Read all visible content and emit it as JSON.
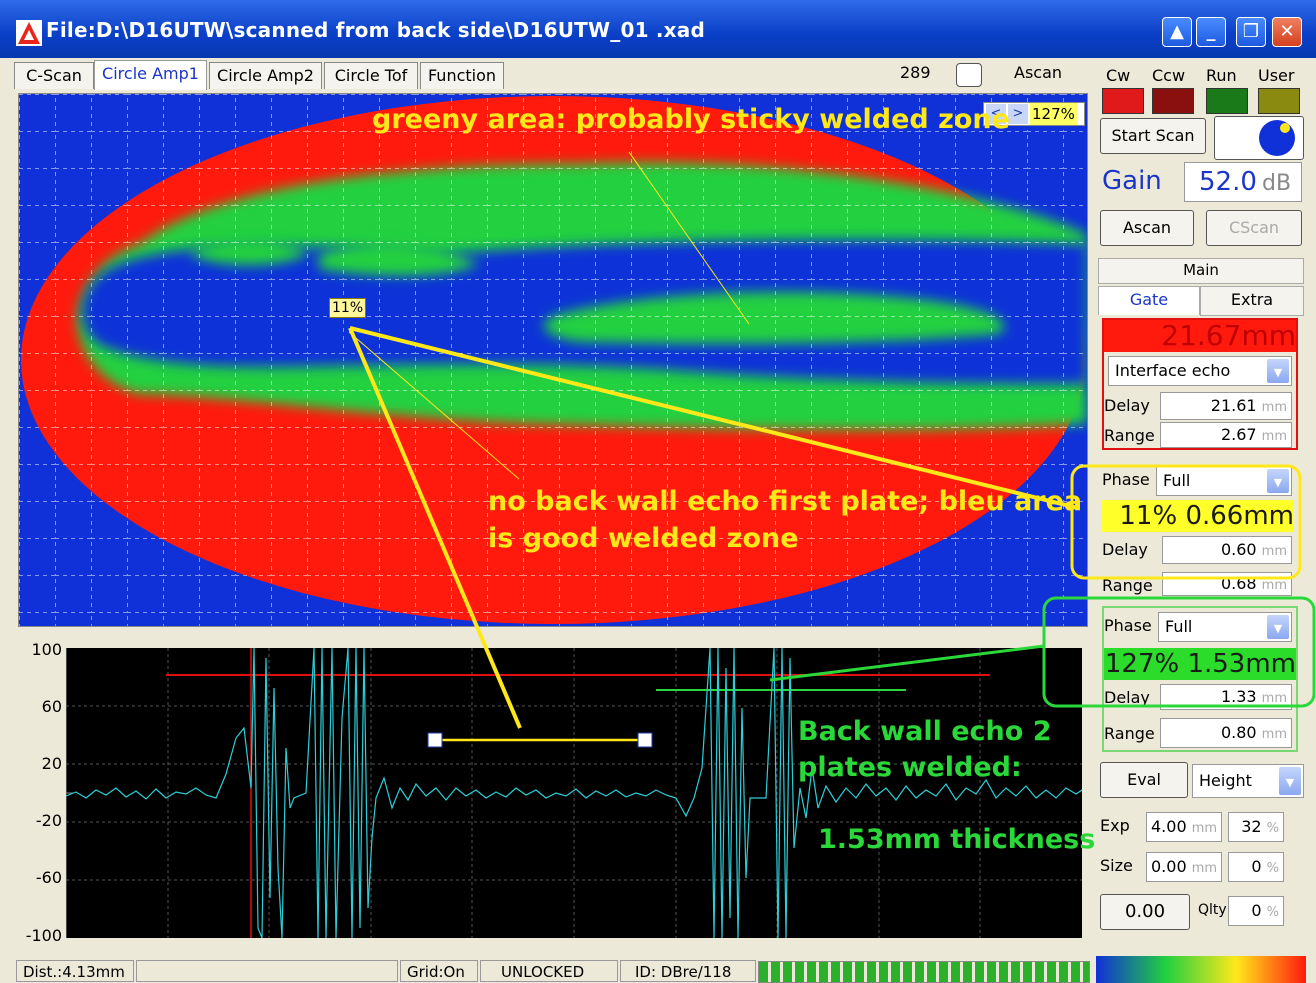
{
  "window": {
    "title": "File:D:\\D16UTW\\scanned from back side\\D16UTW_01  .xad"
  },
  "tabs": [
    {
      "label": "C-Scan"
    },
    {
      "label": "Circle Amp1"
    },
    {
      "label": "Circle Amp2"
    },
    {
      "label": "Circle Tof"
    },
    {
      "label": "Function"
    }
  ],
  "toolbar": {
    "counter": "289",
    "ascan_label": "Ascan",
    "zoom": "127%"
  },
  "cscan": {
    "marker_label": "11%"
  },
  "ascan": {
    "y_ticks": [
      "100",
      "60",
      "20",
      "-20",
      "-60",
      "-100"
    ]
  },
  "annotations": {
    "greeny": "greeny area: probably sticky welded zone",
    "noback_line1": "no back wall echo first plate; bleu area",
    "noback_line2": "is good welded zone",
    "backwall_line1": "Back wall echo 2",
    "backwall_line2": "plates welded:",
    "thickness": "1.53mm thickness"
  },
  "status": {
    "dist": "Dist.:4.13mm",
    "grid": "Grid:On",
    "lock": "UNLOCKED",
    "id": "ID: DBre/118"
  },
  "panel": {
    "dirs": [
      "Cw",
      "Ccw",
      "Run",
      "User"
    ],
    "start_scan": "Start Scan",
    "gain_label": "Gain",
    "gain_value": "52.0",
    "gain_unit": "dB",
    "ascan_btn": "Ascan",
    "cscan_btn": "CScan",
    "main_tab": "Main",
    "gate_tab": "Gate",
    "extra_tab": "Extra",
    "gate1": {
      "header": "21.67mm",
      "mode": "Interface echo",
      "delay_label": "Delay",
      "delay": "21.61",
      "range_label": "Range",
      "range": "2.67",
      "unit": "mm"
    },
    "gate2": {
      "phase_label": "Phase",
      "phase": "Full",
      "header": "11% 0.66mm",
      "delay_label": "Delay",
      "delay": "0.60",
      "range_label": "Range",
      "range": "0.68",
      "unit": "mm"
    },
    "gate3": {
      "phase_label": "Phase",
      "phase": "Full",
      "header": "127% 1.53mm",
      "delay_label": "Delay",
      "delay": "1.33",
      "range_label": "Range",
      "range": "0.80",
      "unit": "mm"
    },
    "eval_btn": "Eval",
    "eval_mode": "Height",
    "exp_label": "Exp",
    "exp_value": "4.00",
    "exp_unit": "mm",
    "exp_pct": "32",
    "size_label": "Size",
    "size_value": "0.00",
    "size_unit": "mm",
    "size_pct": "0",
    "pct_unit": "%",
    "result": "0.00",
    "qlty_label": "Qlty",
    "qlty_value": "0"
  },
  "colors": {
    "scan_red": "#ff1a0d",
    "scan_blue": "#1030d8",
    "scan_green": "#22d040",
    "annotation_yellow": "#ffe81a",
    "annotation_green": "#2bd83a",
    "title_blue": "#0a3fc7"
  }
}
